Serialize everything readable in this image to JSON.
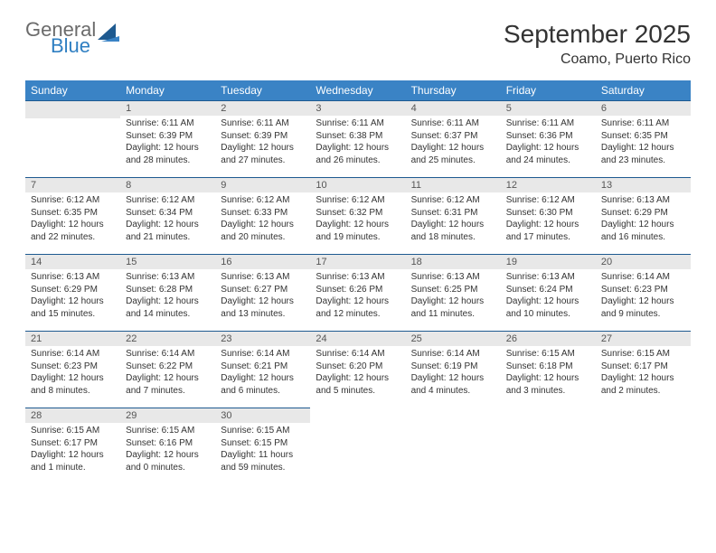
{
  "logo": {
    "word1": "General",
    "word2": "Blue",
    "word1_color": "#6b6b6b",
    "word2_color": "#2f7fc2",
    "shape_color": "#1e5a90"
  },
  "header": {
    "month_title": "September 2025",
    "location": "Coamo, Puerto Rico"
  },
  "styling": {
    "header_bg": "#3a83c5",
    "header_text": "#ffffff",
    "daynum_bg": "#e8e8e8",
    "cell_border": "#1e5a90",
    "body_text": "#333333",
    "day_fontsize": 10,
    "header_fontsize": 12,
    "title_fontsize": 28
  },
  "weekdays": [
    "Sunday",
    "Monday",
    "Tuesday",
    "Wednesday",
    "Thursday",
    "Friday",
    "Saturday"
  ],
  "weeks": [
    [
      null,
      {
        "n": "1",
        "sunrise": "Sunrise: 6:11 AM",
        "sunset": "Sunset: 6:39 PM",
        "daylight": "Daylight: 12 hours and 28 minutes."
      },
      {
        "n": "2",
        "sunrise": "Sunrise: 6:11 AM",
        "sunset": "Sunset: 6:39 PM",
        "daylight": "Daylight: 12 hours and 27 minutes."
      },
      {
        "n": "3",
        "sunrise": "Sunrise: 6:11 AM",
        "sunset": "Sunset: 6:38 PM",
        "daylight": "Daylight: 12 hours and 26 minutes."
      },
      {
        "n": "4",
        "sunrise": "Sunrise: 6:11 AM",
        "sunset": "Sunset: 6:37 PM",
        "daylight": "Daylight: 12 hours and 25 minutes."
      },
      {
        "n": "5",
        "sunrise": "Sunrise: 6:11 AM",
        "sunset": "Sunset: 6:36 PM",
        "daylight": "Daylight: 12 hours and 24 minutes."
      },
      {
        "n": "6",
        "sunrise": "Sunrise: 6:11 AM",
        "sunset": "Sunset: 6:35 PM",
        "daylight": "Daylight: 12 hours and 23 minutes."
      }
    ],
    [
      {
        "n": "7",
        "sunrise": "Sunrise: 6:12 AM",
        "sunset": "Sunset: 6:35 PM",
        "daylight": "Daylight: 12 hours and 22 minutes."
      },
      {
        "n": "8",
        "sunrise": "Sunrise: 6:12 AM",
        "sunset": "Sunset: 6:34 PM",
        "daylight": "Daylight: 12 hours and 21 minutes."
      },
      {
        "n": "9",
        "sunrise": "Sunrise: 6:12 AM",
        "sunset": "Sunset: 6:33 PM",
        "daylight": "Daylight: 12 hours and 20 minutes."
      },
      {
        "n": "10",
        "sunrise": "Sunrise: 6:12 AM",
        "sunset": "Sunset: 6:32 PM",
        "daylight": "Daylight: 12 hours and 19 minutes."
      },
      {
        "n": "11",
        "sunrise": "Sunrise: 6:12 AM",
        "sunset": "Sunset: 6:31 PM",
        "daylight": "Daylight: 12 hours and 18 minutes."
      },
      {
        "n": "12",
        "sunrise": "Sunrise: 6:12 AM",
        "sunset": "Sunset: 6:30 PM",
        "daylight": "Daylight: 12 hours and 17 minutes."
      },
      {
        "n": "13",
        "sunrise": "Sunrise: 6:13 AM",
        "sunset": "Sunset: 6:29 PM",
        "daylight": "Daylight: 12 hours and 16 minutes."
      }
    ],
    [
      {
        "n": "14",
        "sunrise": "Sunrise: 6:13 AM",
        "sunset": "Sunset: 6:29 PM",
        "daylight": "Daylight: 12 hours and 15 minutes."
      },
      {
        "n": "15",
        "sunrise": "Sunrise: 6:13 AM",
        "sunset": "Sunset: 6:28 PM",
        "daylight": "Daylight: 12 hours and 14 minutes."
      },
      {
        "n": "16",
        "sunrise": "Sunrise: 6:13 AM",
        "sunset": "Sunset: 6:27 PM",
        "daylight": "Daylight: 12 hours and 13 minutes."
      },
      {
        "n": "17",
        "sunrise": "Sunrise: 6:13 AM",
        "sunset": "Sunset: 6:26 PM",
        "daylight": "Daylight: 12 hours and 12 minutes."
      },
      {
        "n": "18",
        "sunrise": "Sunrise: 6:13 AM",
        "sunset": "Sunset: 6:25 PM",
        "daylight": "Daylight: 12 hours and 11 minutes."
      },
      {
        "n": "19",
        "sunrise": "Sunrise: 6:13 AM",
        "sunset": "Sunset: 6:24 PM",
        "daylight": "Daylight: 12 hours and 10 minutes."
      },
      {
        "n": "20",
        "sunrise": "Sunrise: 6:14 AM",
        "sunset": "Sunset: 6:23 PM",
        "daylight": "Daylight: 12 hours and 9 minutes."
      }
    ],
    [
      {
        "n": "21",
        "sunrise": "Sunrise: 6:14 AM",
        "sunset": "Sunset: 6:23 PM",
        "daylight": "Daylight: 12 hours and 8 minutes."
      },
      {
        "n": "22",
        "sunrise": "Sunrise: 6:14 AM",
        "sunset": "Sunset: 6:22 PM",
        "daylight": "Daylight: 12 hours and 7 minutes."
      },
      {
        "n": "23",
        "sunrise": "Sunrise: 6:14 AM",
        "sunset": "Sunset: 6:21 PM",
        "daylight": "Daylight: 12 hours and 6 minutes."
      },
      {
        "n": "24",
        "sunrise": "Sunrise: 6:14 AM",
        "sunset": "Sunset: 6:20 PM",
        "daylight": "Daylight: 12 hours and 5 minutes."
      },
      {
        "n": "25",
        "sunrise": "Sunrise: 6:14 AM",
        "sunset": "Sunset: 6:19 PM",
        "daylight": "Daylight: 12 hours and 4 minutes."
      },
      {
        "n": "26",
        "sunrise": "Sunrise: 6:15 AM",
        "sunset": "Sunset: 6:18 PM",
        "daylight": "Daylight: 12 hours and 3 minutes."
      },
      {
        "n": "27",
        "sunrise": "Sunrise: 6:15 AM",
        "sunset": "Sunset: 6:17 PM",
        "daylight": "Daylight: 12 hours and 2 minutes."
      }
    ],
    [
      {
        "n": "28",
        "sunrise": "Sunrise: 6:15 AM",
        "sunset": "Sunset: 6:17 PM",
        "daylight": "Daylight: 12 hours and 1 minute."
      },
      {
        "n": "29",
        "sunrise": "Sunrise: 6:15 AM",
        "sunset": "Sunset: 6:16 PM",
        "daylight": "Daylight: 12 hours and 0 minutes."
      },
      {
        "n": "30",
        "sunrise": "Sunrise: 6:15 AM",
        "sunset": "Sunset: 6:15 PM",
        "daylight": "Daylight: 11 hours and 59 minutes."
      },
      null,
      null,
      null,
      null
    ]
  ]
}
